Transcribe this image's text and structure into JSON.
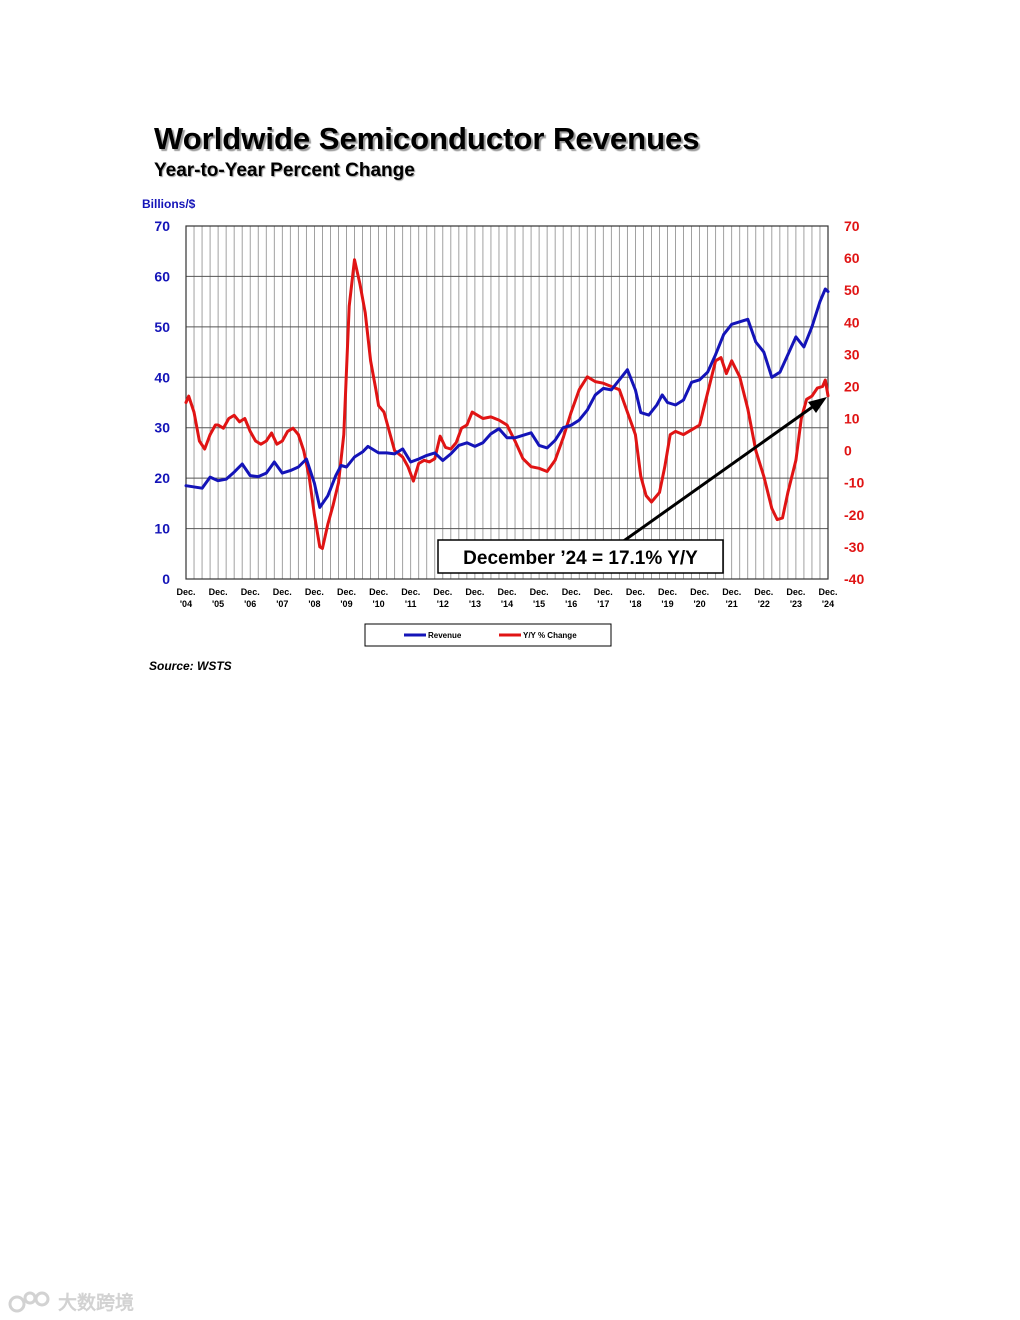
{
  "title": "Worldwide Semiconductor Revenues",
  "subtitle": "Year-to-Year Percent Change",
  "source": "Source: WSTS",
  "watermark": "大数跨境",
  "callout": "December ’24 = 17.1% Y/Y",
  "colors": {
    "revenue": "#1414b8",
    "yoy": "#e01414",
    "grid": "#8a8a8a"
  },
  "chart_data": {
    "type": "line",
    "title": "Worldwide Semiconductor Revenues",
    "subtitle": "Year-to-Year Percent Change",
    "ylabel_left": "Billions/$",
    "ylim_left": [
      0,
      70
    ],
    "yticks_left": [
      0,
      10,
      20,
      30,
      40,
      50,
      60,
      70
    ],
    "ylim_right": [
      -40,
      70
    ],
    "yticks_right": [
      -40,
      -30,
      -20,
      -10,
      0,
      10,
      20,
      30,
      40,
      50,
      60,
      70
    ],
    "x_range": [
      "2004-12",
      "2024-12"
    ],
    "x_tick_labels": [
      [
        "Dec.",
        "'04"
      ],
      [
        "Dec.",
        "'05"
      ],
      [
        "Dec.",
        "'06"
      ],
      [
        "Dec.",
        "'07"
      ],
      [
        "Dec.",
        "'08"
      ],
      [
        "Dec.",
        "'09"
      ],
      [
        "Dec.",
        "'10"
      ],
      [
        "Dec.",
        "'11"
      ],
      [
        "Dec.",
        "'12"
      ],
      [
        "Dec.",
        "'13"
      ],
      [
        "Dec.",
        "'14"
      ],
      [
        "Dec.",
        "'15"
      ],
      [
        "Dec.",
        "'16"
      ],
      [
        "Dec.",
        "'17"
      ],
      [
        "Dec.",
        "'18"
      ],
      [
        "Dec.",
        "'19"
      ],
      [
        "Dec.",
        "'20"
      ],
      [
        "Dec.",
        "'21"
      ],
      [
        "Dec.",
        "'22"
      ],
      [
        "Dec.",
        "'23"
      ],
      [
        "Dec.",
        "'24"
      ]
    ],
    "grid": true,
    "legend": {
      "position": "bottom-center",
      "labels": [
        "Revenue",
        "Y/Y % Change"
      ]
    },
    "series": [
      {
        "name": "Revenue",
        "axis": "left",
        "points": [
          [
            "2004-12",
            18.5
          ],
          [
            "2005-06",
            18.0
          ],
          [
            "2005-09",
            20.2
          ],
          [
            "2005-12",
            19.5
          ],
          [
            "2006-03",
            19.8
          ],
          [
            "2006-06",
            21.2
          ],
          [
            "2006-09",
            22.8
          ],
          [
            "2006-12",
            20.5
          ],
          [
            "2007-03",
            20.3
          ],
          [
            "2007-06",
            21.0
          ],
          [
            "2007-09",
            23.2
          ],
          [
            "2007-12",
            21.0
          ],
          [
            "2008-03",
            21.5
          ],
          [
            "2008-06",
            22.2
          ],
          [
            "2008-09",
            23.8
          ],
          [
            "2008-12",
            19.0
          ],
          [
            "2009-02",
            14.2
          ],
          [
            "2009-05",
            16.5
          ],
          [
            "2009-08",
            20.5
          ],
          [
            "2009-10",
            22.5
          ],
          [
            "2009-12",
            22.2
          ],
          [
            "2010-03",
            24.2
          ],
          [
            "2010-06",
            25.2
          ],
          [
            "2010-08",
            26.3
          ],
          [
            "2010-12",
            25.0
          ],
          [
            "2011-03",
            25.0
          ],
          [
            "2011-06",
            24.8
          ],
          [
            "2011-09",
            25.8
          ],
          [
            "2011-12",
            23.2
          ],
          [
            "2012-03",
            23.8
          ],
          [
            "2012-06",
            24.5
          ],
          [
            "2012-09",
            25.0
          ],
          [
            "2012-12",
            23.5
          ],
          [
            "2013-03",
            24.8
          ],
          [
            "2013-06",
            26.5
          ],
          [
            "2013-09",
            27.0
          ],
          [
            "2013-12",
            26.3
          ],
          [
            "2014-03",
            27.0
          ],
          [
            "2014-06",
            28.8
          ],
          [
            "2014-09",
            29.8
          ],
          [
            "2014-12",
            28.0
          ],
          [
            "2015-03",
            28.0
          ],
          [
            "2015-06",
            28.5
          ],
          [
            "2015-09",
            29.0
          ],
          [
            "2015-12",
            26.5
          ],
          [
            "2016-03",
            26.0
          ],
          [
            "2016-06",
            27.5
          ],
          [
            "2016-09",
            30.0
          ],
          [
            "2016-12",
            30.5
          ],
          [
            "2017-03",
            31.5
          ],
          [
            "2017-06",
            33.5
          ],
          [
            "2017-09",
            36.5
          ],
          [
            "2017-12",
            37.8
          ],
          [
            "2018-03",
            37.5
          ],
          [
            "2018-06",
            39.5
          ],
          [
            "2018-09",
            41.5
          ],
          [
            "2018-12",
            37.5
          ],
          [
            "2019-02",
            33.0
          ],
          [
            "2019-05",
            32.5
          ],
          [
            "2019-08",
            34.5
          ],
          [
            "2019-10",
            36.5
          ],
          [
            "2019-12",
            35.0
          ],
          [
            "2020-03",
            34.5
          ],
          [
            "2020-06",
            35.5
          ],
          [
            "2020-09",
            39.0
          ],
          [
            "2020-12",
            39.5
          ],
          [
            "2021-03",
            41.0
          ],
          [
            "2021-06",
            44.5
          ],
          [
            "2021-09",
            48.5
          ],
          [
            "2021-12",
            50.5
          ],
          [
            "2022-03",
            51.0
          ],
          [
            "2022-06",
            51.5
          ],
          [
            "2022-09",
            47.0
          ],
          [
            "2022-12",
            45.0
          ],
          [
            "2023-03",
            40.0
          ],
          [
            "2023-06",
            41.0
          ],
          [
            "2023-09",
            44.5
          ],
          [
            "2023-12",
            48.0
          ],
          [
            "2024-03",
            46.0
          ],
          [
            "2024-06",
            50.0
          ],
          [
            "2024-09",
            55.0
          ],
          [
            "2024-11",
            57.5
          ],
          [
            "2024-12",
            57.0
          ]
        ]
      },
      {
        "name": "Y/Y % Change",
        "axis": "right",
        "points": [
          [
            "2004-12",
            15.0
          ],
          [
            "2005-01",
            17.0
          ],
          [
            "2005-03",
            12.0
          ],
          [
            "2005-05",
            3.0
          ],
          [
            "2005-07",
            0.5
          ],
          [
            "2005-09",
            5.0
          ],
          [
            "2005-11",
            8.0
          ],
          [
            "2005-12",
            8.0
          ],
          [
            "2006-02",
            7.0
          ],
          [
            "2006-04",
            10.0
          ],
          [
            "2006-06",
            11.0
          ],
          [
            "2006-08",
            9.0
          ],
          [
            "2006-10",
            10.0
          ],
          [
            "2006-12",
            6.0
          ],
          [
            "2007-02",
            3.0
          ],
          [
            "2007-04",
            2.0
          ],
          [
            "2007-06",
            3.0
          ],
          [
            "2007-08",
            5.5
          ],
          [
            "2007-10",
            2.0
          ],
          [
            "2007-12",
            3.0
          ],
          [
            "2008-02",
            6.0
          ],
          [
            "2008-04",
            7.0
          ],
          [
            "2008-06",
            5.0
          ],
          [
            "2008-08",
            0.0
          ],
          [
            "2008-10",
            -8.0
          ],
          [
            "2008-12",
            -20.0
          ],
          [
            "2009-02",
            -30.0
          ],
          [
            "2009-03",
            -30.5
          ],
          [
            "2009-05",
            -23.0
          ],
          [
            "2009-07",
            -17.0
          ],
          [
            "2009-09",
            -10.0
          ],
          [
            "2009-11",
            5.0
          ],
          [
            "2010-01",
            45.0
          ],
          [
            "2010-03",
            59.5
          ],
          [
            "2010-05",
            52.0
          ],
          [
            "2010-07",
            43.0
          ],
          [
            "2010-09",
            28.0
          ],
          [
            "2010-11",
            19.0
          ],
          [
            "2010-12",
            14.0
          ],
          [
            "2011-02",
            12.0
          ],
          [
            "2011-04",
            6.0
          ],
          [
            "2011-06",
            0.0
          ],
          [
            "2011-09",
            -2.0
          ],
          [
            "2011-11",
            -5.0
          ],
          [
            "2012-01",
            -9.5
          ],
          [
            "2012-03",
            -4.0
          ],
          [
            "2012-05",
            -3.0
          ],
          [
            "2012-07",
            -3.5
          ],
          [
            "2012-09",
            -2.5
          ],
          [
            "2012-11",
            4.5
          ],
          [
            "2013-01",
            1.0
          ],
          [
            "2013-03",
            0.5
          ],
          [
            "2013-05",
            2.5
          ],
          [
            "2013-07",
            7.0
          ],
          [
            "2013-09",
            8.0
          ],
          [
            "2013-11",
            12.0
          ],
          [
            "2014-01",
            11.0
          ],
          [
            "2014-03",
            10.0
          ],
          [
            "2014-06",
            10.5
          ],
          [
            "2014-09",
            9.5
          ],
          [
            "2014-12",
            8.0
          ],
          [
            "2015-03",
            3.0
          ],
          [
            "2015-06",
            -2.5
          ],
          [
            "2015-09",
            -5.0
          ],
          [
            "2015-12",
            -5.5
          ],
          [
            "2016-03",
            -6.5
          ],
          [
            "2016-06",
            -3.0
          ],
          [
            "2016-09",
            4.0
          ],
          [
            "2016-12",
            12.0
          ],
          [
            "2017-03",
            19.0
          ],
          [
            "2017-06",
            23.0
          ],
          [
            "2017-09",
            21.5
          ],
          [
            "2017-12",
            21.0
          ],
          [
            "2018-03",
            20.0
          ],
          [
            "2018-06",
            19.0
          ],
          [
            "2018-09",
            12.0
          ],
          [
            "2018-12",
            5.0
          ],
          [
            "2019-02",
            -8.0
          ],
          [
            "2019-04",
            -14.0
          ],
          [
            "2019-06",
            -16.0
          ],
          [
            "2019-09",
            -13.0
          ],
          [
            "2019-11",
            -5.0
          ],
          [
            "2020-01",
            5.0
          ],
          [
            "2020-03",
            6.0
          ],
          [
            "2020-06",
            5.0
          ],
          [
            "2020-09",
            6.5
          ],
          [
            "2020-12",
            8.0
          ],
          [
            "2021-03",
            18.0
          ],
          [
            "2021-06",
            28.0
          ],
          [
            "2021-08",
            29.0
          ],
          [
            "2021-10",
            24.0
          ],
          [
            "2021-12",
            28.0
          ],
          [
            "2022-03",
            23.0
          ],
          [
            "2022-06",
            13.0
          ],
          [
            "2022-09",
            0.0
          ],
          [
            "2022-12",
            -8.0
          ],
          [
            "2023-03",
            -18.0
          ],
          [
            "2023-05",
            -21.5
          ],
          [
            "2023-07",
            -21.0
          ],
          [
            "2023-09",
            -13.0
          ],
          [
            "2023-12",
            -3.0
          ],
          [
            "2024-02",
            10.0
          ],
          [
            "2024-04",
            16.0
          ],
          [
            "2024-06",
            17.0
          ],
          [
            "2024-08",
            19.5
          ],
          [
            "2024-10",
            20.0
          ],
          [
            "2024-11",
            22.0
          ],
          [
            "2024-12",
            17.1
          ]
        ]
      }
    ]
  }
}
